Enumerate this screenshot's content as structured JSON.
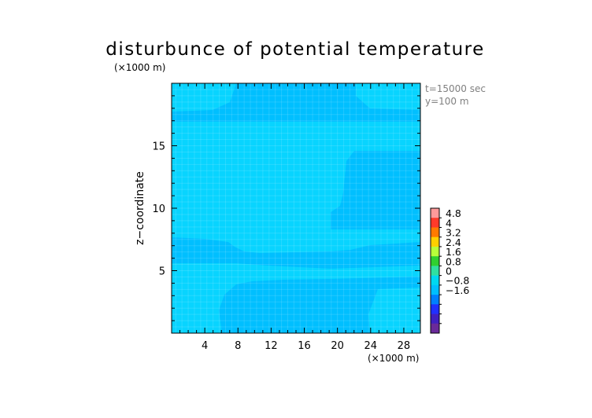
{
  "chart_data": {
    "type": "heatmap",
    "title": "disturbunce of potential temperature",
    "unit_top": "(×1000 m)",
    "unit_bottom": "(×1000 m)",
    "ylabel": "z−coordinate",
    "info_time": "t=15000 sec",
    "info_y": "y=100 m",
    "xlim": [
      0,
      30
    ],
    "ylim": [
      0,
      20
    ],
    "x_ticks": [
      4,
      8,
      12,
      16,
      20,
      24,
      28
    ],
    "y_ticks": [
      5,
      10,
      15
    ],
    "colorbar": {
      "levels": [
        "4.8",
        "4",
        "3.2",
        "2.4",
        "1.6",
        "0.8",
        "0",
        "−0.8",
        "−1.6"
      ],
      "colors": [
        "#ff9a9a",
        "#ff3a2a",
        "#ff7a00",
        "#ffd000",
        "#b8ff3a",
        "#30d030",
        "#30e0a0",
        "#00d8f0",
        "#00bfff",
        "#0080ff",
        "#2030ff",
        "#4020c0",
        "#6a2a9a"
      ]
    },
    "field_colors": {
      "background": "#00bfff",
      "light": "#08d4ff"
    },
    "field_summary": "near-zero perturbation everywhere; values between about −0.4 and 0.4"
  }
}
